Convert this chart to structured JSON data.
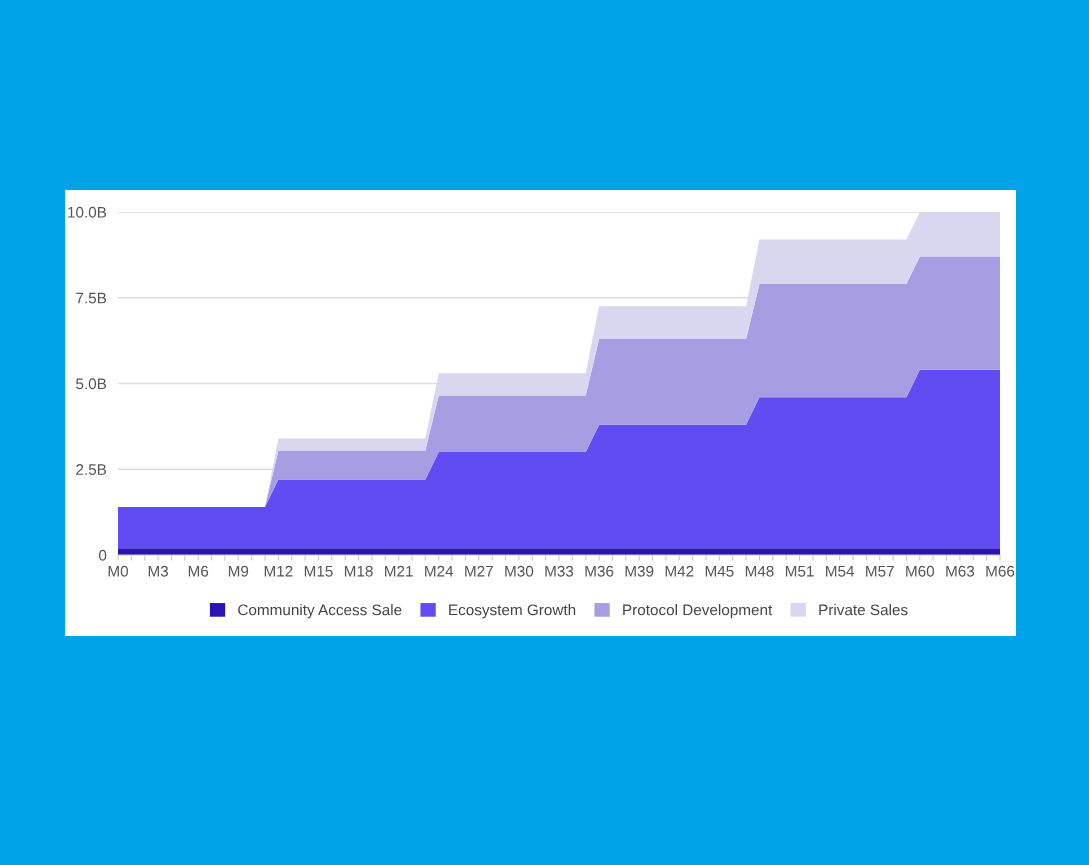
{
  "chart_data": {
    "type": "area",
    "stacked": true,
    "categories": [
      "M0",
      null,
      null,
      "M3",
      null,
      null,
      "M6",
      null,
      null,
      "M9",
      null,
      null,
      "M12",
      null,
      null,
      "M15",
      null,
      null,
      "M18",
      null,
      null,
      "M21",
      null,
      null,
      "M24",
      null,
      null,
      "M27",
      null,
      null,
      "M30",
      null,
      null,
      "M33",
      null,
      null,
      "M36",
      null,
      null,
      "M39",
      null,
      null,
      "M42",
      null,
      null,
      "M45",
      null,
      null,
      "M48",
      null,
      null,
      "M51",
      null,
      null,
      "M54",
      null,
      null,
      "M57",
      null,
      null,
      "M60",
      null,
      null,
      "M63",
      null,
      null,
      "M66"
    ],
    "series": [
      {
        "name": "Community Access Sale",
        "color": "#2a14b4",
        "values": [
          0.2,
          0.2,
          0.2,
          0.2,
          0.2,
          0.2,
          0.2,
          0.2,
          0.2,
          0.2,
          0.2,
          0.2,
          0.2,
          0.2,
          0.2,
          0.2,
          0.2,
          0.2,
          0.2,
          0.2,
          0.2,
          0.2,
          0.2,
          0.2,
          0.2,
          0.2,
          0.2,
          0.2,
          0.2,
          0.2,
          0.2,
          0.2,
          0.2,
          0.2,
          0.2,
          0.2,
          0.2,
          0.2,
          0.2,
          0.2,
          0.2,
          0.2,
          0.2,
          0.2,
          0.2,
          0.2,
          0.2,
          0.2,
          0.2,
          0.2,
          0.2,
          0.2,
          0.2,
          0.2,
          0.2,
          0.2,
          0.2,
          0.2,
          0.2,
          0.2,
          0.2,
          0.2,
          0.2,
          0.2,
          0.2,
          0.2,
          0.2
        ]
      },
      {
        "name": "Ecosystem Growth",
        "color": "#604cf2",
        "values": [
          1.2,
          1.2,
          1.2,
          1.2,
          1.2,
          1.2,
          1.2,
          1.2,
          1.2,
          1.2,
          1.2,
          1.2,
          2.0,
          2.0,
          2.0,
          2.0,
          2.0,
          2.0,
          2.0,
          2.0,
          2.0,
          2.0,
          2.0,
          2.0,
          2.8,
          2.8,
          2.8,
          2.8,
          2.8,
          2.8,
          2.8,
          2.8,
          2.8,
          2.8,
          2.8,
          2.8,
          3.6,
          3.6,
          3.6,
          3.6,
          3.6,
          3.6,
          3.6,
          3.6,
          3.6,
          3.6,
          3.6,
          3.6,
          4.4,
          4.4,
          4.4,
          4.4,
          4.4,
          4.4,
          4.4,
          4.4,
          4.4,
          4.4,
          4.4,
          4.4,
          5.2,
          5.2,
          5.2,
          5.2,
          5.2,
          5.2,
          5.2
        ]
      },
      {
        "name": "Protocol Development",
        "color": "#a69de3",
        "values": [
          0,
          0,
          0,
          0,
          0,
          0,
          0,
          0,
          0,
          0,
          0,
          0,
          0.85,
          0.85,
          0.85,
          0.85,
          0.85,
          0.85,
          0.85,
          0.85,
          0.85,
          0.85,
          0.85,
          0.85,
          1.65,
          1.65,
          1.65,
          1.65,
          1.65,
          1.65,
          1.65,
          1.65,
          1.65,
          1.65,
          1.65,
          1.65,
          2.5,
          2.5,
          2.5,
          2.5,
          2.5,
          2.5,
          2.5,
          2.5,
          2.5,
          2.5,
          2.5,
          2.5,
          3.3,
          3.3,
          3.3,
          3.3,
          3.3,
          3.3,
          3.3,
          3.3,
          3.3,
          3.3,
          3.3,
          3.3,
          3.3,
          3.3,
          3.3,
          3.3,
          3.3,
          3.3,
          3.3
        ]
      },
      {
        "name": "Private Sales",
        "color": "#d9d6f0",
        "values": [
          0,
          0,
          0,
          0,
          0,
          0,
          0,
          0,
          0,
          0,
          0,
          0,
          0.35,
          0.35,
          0.35,
          0.35,
          0.35,
          0.35,
          0.35,
          0.35,
          0.35,
          0.35,
          0.35,
          0.35,
          0.65,
          0.65,
          0.65,
          0.65,
          0.65,
          0.65,
          0.65,
          0.65,
          0.65,
          0.65,
          0.65,
          0.65,
          0.95,
          0.95,
          0.95,
          0.95,
          0.95,
          0.95,
          0.95,
          0.95,
          0.95,
          0.95,
          0.95,
          0.95,
          1.3,
          1.3,
          1.3,
          1.3,
          1.3,
          1.3,
          1.3,
          1.3,
          1.3,
          1.3,
          1.3,
          1.3,
          1.3,
          1.3,
          1.3,
          1.3,
          1.3,
          1.3,
          1.3
        ]
      }
    ],
    "ylim": [
      0,
      10.0
    ],
    "yticks": [
      0,
      {
        "value": 2.5,
        "label": "2.5B"
      },
      {
        "value": 5.0,
        "label": "5.0B"
      },
      {
        "value": 7.5,
        "label": "7.5B"
      },
      {
        "value": 10.0,
        "label": "10.0B"
      }
    ],
    "grid": "y",
    "legend": "bottom"
  }
}
